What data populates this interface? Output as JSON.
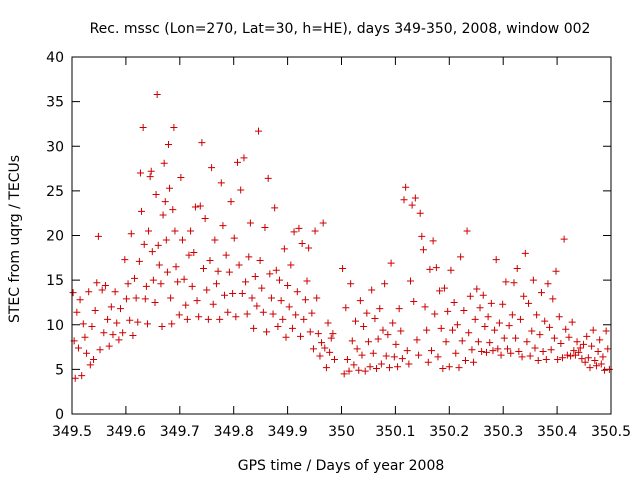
{
  "chart_data": {
    "type": "scatter",
    "title": "Rec. mssc (Lon=270, Lat=30, h=HE), days 349-350, 2008, window 002",
    "xlabel": "GPS time / Days of year 2008",
    "ylabel": "STEC from uqrg / TECUs",
    "xlim": [
      349.5,
      350.5
    ],
    "ylim": [
      0,
      40
    ],
    "xticks": [
      349.5,
      349.6,
      349.7,
      349.8,
      349.9,
      350,
      350.1,
      350.2,
      350.3,
      350.4,
      350.5
    ],
    "xtick_labels": [
      "349.5",
      "349.6",
      "349.7",
      "349.8",
      "349.9",
      "350",
      "350.1",
      "350.2",
      "350.3",
      "350.4",
      "350.5"
    ],
    "yticks": [
      0,
      5,
      10,
      15,
      20,
      25,
      30,
      35,
      40
    ],
    "ytick_labels": [
      "0",
      "5",
      "10",
      "15",
      "20",
      "25",
      "30",
      "35",
      "40"
    ],
    "grid": false,
    "marker": "+",
    "point_color": "#cc0000",
    "points": [
      [
        349.502,
        13.6
      ],
      [
        349.504,
        8.2
      ],
      [
        349.506,
        4.0
      ],
      [
        349.509,
        11.4
      ],
      [
        349.512,
        7.4
      ],
      [
        349.515,
        12.8
      ],
      [
        349.518,
        4.3
      ],
      [
        349.521,
        10.1
      ],
      [
        349.524,
        8.6
      ],
      [
        349.527,
        6.8
      ],
      [
        349.531,
        13.7
      ],
      [
        349.534,
        5.5
      ],
      [
        349.537,
        9.8
      ],
      [
        349.54,
        6.1
      ],
      [
        349.543,
        11.6
      ],
      [
        349.546,
        14.7
      ],
      [
        349.549,
        19.9
      ],
      [
        349.552,
        7.2
      ],
      [
        349.556,
        13.9
      ],
      [
        349.559,
        9.1
      ],
      [
        349.562,
        14.4
      ],
      [
        349.566,
        10.6
      ],
      [
        349.569,
        7.6
      ],
      [
        349.573,
        12.0
      ],
      [
        349.576,
        8.9
      ],
      [
        349.58,
        13.7
      ],
      [
        349.583,
        10.2
      ],
      [
        349.587,
        8.3
      ],
      [
        349.59,
        11.8
      ],
      [
        349.594,
        9.1
      ],
      [
        349.598,
        17.3
      ],
      [
        349.601,
        12.9
      ],
      [
        349.604,
        14.6
      ],
      [
        349.607,
        10.5
      ],
      [
        349.61,
        20.2
      ],
      [
        349.613,
        8.8
      ],
      [
        349.616,
        15.2
      ],
      [
        349.619,
        13.0
      ],
      [
        349.622,
        10.3
      ],
      [
        349.625,
        17.1
      ],
      [
        349.627,
        27.0
      ],
      [
        349.629,
        22.7
      ],
      [
        349.632,
        32.1
      ],
      [
        349.634,
        19.0
      ],
      [
        349.636,
        12.9
      ],
      [
        349.638,
        14.3
      ],
      [
        349.64,
        10.1
      ],
      [
        349.642,
        20.5
      ],
      [
        349.645,
        26.6
      ],
      [
        349.647,
        27.2
      ],
      [
        349.649,
        18.2
      ],
      [
        349.651,
        15.0
      ],
      [
        349.654,
        12.5
      ],
      [
        349.656,
        24.6
      ],
      [
        349.658,
        35.8
      ],
      [
        349.66,
        18.9
      ],
      [
        349.662,
        16.7
      ],
      [
        349.665,
        14.6
      ],
      [
        349.667,
        9.8
      ],
      [
        349.669,
        22.3
      ],
      [
        349.671,
        28.1
      ],
      [
        349.673,
        23.8
      ],
      [
        349.675,
        19.5
      ],
      [
        349.677,
        15.9
      ],
      [
        349.679,
        30.2
      ],
      [
        349.681,
        25.3
      ],
      [
        349.683,
        13.0
      ],
      [
        349.685,
        10.1
      ],
      [
        349.687,
        22.9
      ],
      [
        349.689,
        32.1
      ],
      [
        349.691,
        20.5
      ],
      [
        349.693,
        16.5
      ],
      [
        349.696,
        14.8
      ],
      [
        349.699,
        11.1
      ],
      [
        349.702,
        26.5
      ],
      [
        349.705,
        19.5
      ],
      [
        349.708,
        15.1
      ],
      [
        349.711,
        12.2
      ],
      [
        349.714,
        10.6
      ],
      [
        349.717,
        17.8
      ],
      [
        349.72,
        20.5
      ],
      [
        349.723,
        14.3
      ],
      [
        349.726,
        18.1
      ],
      [
        349.729,
        23.2
      ],
      [
        349.732,
        12.7
      ],
      [
        349.735,
        10.9
      ],
      [
        349.738,
        23.3
      ],
      [
        349.741,
        30.4
      ],
      [
        349.744,
        16.3
      ],
      [
        349.747,
        21.9
      ],
      [
        349.75,
        13.9
      ],
      [
        349.753,
        10.6
      ],
      [
        349.756,
        17.2
      ],
      [
        349.759,
        27.6
      ],
      [
        349.762,
        12.3
      ],
      [
        349.765,
        19.5
      ],
      [
        349.768,
        14.6
      ],
      [
        349.771,
        16.0
      ],
      [
        349.774,
        10.6
      ],
      [
        349.777,
        25.9
      ],
      [
        349.78,
        21.1
      ],
      [
        349.783,
        13.3
      ],
      [
        349.786,
        17.8
      ],
      [
        349.789,
        11.4
      ],
      [
        349.792,
        15.9
      ],
      [
        349.795,
        23.8
      ],
      [
        349.798,
        13.5
      ],
      [
        349.801,
        19.7
      ],
      [
        349.804,
        10.9
      ],
      [
        349.807,
        28.2
      ],
      [
        349.81,
        16.7
      ],
      [
        349.813,
        25.1
      ],
      [
        349.816,
        13.5
      ],
      [
        349.819,
        28.7
      ],
      [
        349.822,
        14.8
      ],
      [
        349.825,
        11.2
      ],
      [
        349.828,
        17.6
      ],
      [
        349.831,
        21.4
      ],
      [
        349.834,
        13.0
      ],
      [
        349.837,
        9.6
      ],
      [
        349.84,
        15.4
      ],
      [
        349.843,
        12.1
      ],
      [
        349.846,
        31.7
      ],
      [
        349.849,
        17.2
      ],
      [
        349.852,
        14.1
      ],
      [
        349.855,
        11.4
      ],
      [
        349.858,
        20.9
      ],
      [
        349.861,
        9.2
      ],
      [
        349.864,
        26.4
      ],
      [
        349.867,
        15.7
      ],
      [
        349.87,
        13.0
      ],
      [
        349.873,
        11.2
      ],
      [
        349.876,
        23.1
      ],
      [
        349.879,
        16.1
      ],
      [
        349.882,
        9.8
      ],
      [
        349.885,
        15.0
      ],
      [
        349.888,
        12.7
      ],
      [
        349.891,
        10.6
      ],
      [
        349.894,
        18.5
      ],
      [
        349.897,
        8.6
      ],
      [
        349.9,
        14.4
      ],
      [
        349.903,
        12.0
      ],
      [
        349.906,
        16.7
      ],
      [
        349.909,
        9.6
      ],
      [
        349.912,
        20.4
      ],
      [
        349.915,
        11.1
      ],
      [
        349.918,
        13.7
      ],
      [
        349.921,
        20.8
      ],
      [
        349.924,
        8.7
      ],
      [
        349.927,
        19.1
      ],
      [
        349.93,
        10.6
      ],
      [
        349.933,
        12.8
      ],
      [
        349.936,
        14.9
      ],
      [
        349.939,
        18.6
      ],
      [
        349.942,
        9.2
      ],
      [
        349.945,
        11.3
      ],
      [
        349.948,
        7.3
      ],
      [
        349.951,
        20.5
      ],
      [
        349.954,
        13.0
      ],
      [
        349.957,
        9.0
      ],
      [
        349.96,
        6.5
      ],
      [
        349.963,
        8.0
      ],
      [
        349.966,
        21.4
      ],
      [
        349.969,
        7.4
      ],
      [
        349.972,
        5.2
      ],
      [
        349.975,
        10.2
      ],
      [
        349.978,
        6.9
      ],
      [
        349.981,
        8.5
      ],
      [
        349.984,
        9.0
      ],
      [
        349.987,
        6.1
      ],
      [
        350.002,
        16.3
      ],
      [
        350.005,
        4.5
      ],
      [
        350.008,
        11.9
      ],
      [
        350.011,
        6.1
      ],
      [
        350.014,
        4.8
      ],
      [
        350.017,
        14.6
      ],
      [
        350.02,
        8.2
      ],
      [
        350.023,
        5.5
      ],
      [
        350.026,
        10.4
      ],
      [
        350.029,
        7.3
      ],
      [
        350.032,
        4.9
      ],
      [
        350.035,
        12.7
      ],
      [
        350.038,
        6.6
      ],
      [
        350.041,
        9.8
      ],
      [
        350.044,
        4.8
      ],
      [
        350.047,
        11.3
      ],
      [
        350.05,
        8.1
      ],
      [
        350.053,
        5.3
      ],
      [
        350.056,
        13.9
      ],
      [
        350.059,
        6.8
      ],
      [
        350.062,
        10.7
      ],
      [
        350.065,
        5.1
      ],
      [
        350.068,
        8.4
      ],
      [
        350.071,
        11.8
      ],
      [
        350.074,
        5.6
      ],
      [
        350.077,
        9.4
      ],
      [
        350.08,
        14.6
      ],
      [
        350.083,
        6.5
      ],
      [
        350.086,
        8.9
      ],
      [
        350.089,
        5.2
      ],
      [
        350.092,
        16.9
      ],
      [
        350.095,
        10.2
      ],
      [
        350.098,
        6.4
      ],
      [
        350.101,
        7.8
      ],
      [
        350.104,
        5.3
      ],
      [
        350.107,
        11.8
      ],
      [
        350.11,
        9.3
      ],
      [
        350.113,
        6.2
      ],
      [
        350.116,
        24.0
      ],
      [
        350.119,
        25.4
      ],
      [
        350.122,
        7.1
      ],
      [
        350.125,
        5.6
      ],
      [
        350.128,
        14.9
      ],
      [
        350.131,
        23.4
      ],
      [
        350.134,
        12.6
      ],
      [
        350.137,
        24.2
      ],
      [
        350.14,
        8.3
      ],
      [
        350.143,
        6.6
      ],
      [
        350.146,
        22.5
      ],
      [
        350.149,
        19.9
      ],
      [
        350.152,
        18.4
      ],
      [
        350.155,
        12.0
      ],
      [
        350.158,
        9.4
      ],
      [
        350.161,
        5.8
      ],
      [
        350.164,
        16.2
      ],
      [
        350.167,
        7.1
      ],
      [
        350.17,
        19.4
      ],
      [
        350.173,
        11.2
      ],
      [
        350.176,
        16.4
      ],
      [
        350.179,
        6.4
      ],
      [
        350.182,
        13.8
      ],
      [
        350.185,
        9.6
      ],
      [
        350.188,
        5.1
      ],
      [
        350.191,
        14.1
      ],
      [
        350.194,
        8.1
      ],
      [
        350.197,
        11.5
      ],
      [
        350.2,
        5.3
      ],
      [
        350.203,
        16.1
      ],
      [
        350.206,
        9.4
      ],
      [
        350.209,
        12.5
      ],
      [
        350.212,
        6.8
      ],
      [
        350.215,
        10.0
      ],
      [
        350.218,
        5.2
      ],
      [
        350.221,
        17.6
      ],
      [
        350.224,
        8.2
      ],
      [
        350.227,
        11.6
      ],
      [
        350.23,
        6.0
      ],
      [
        350.233,
        20.5
      ],
      [
        350.236,
        9.1
      ],
      [
        350.239,
        13.2
      ],
      [
        350.242,
        7.2
      ],
      [
        350.245,
        5.8
      ],
      [
        350.248,
        10.6
      ],
      [
        350.251,
        14.0
      ],
      [
        350.254,
        8.1
      ],
      [
        350.257,
        11.9
      ],
      [
        350.26,
        7.0
      ],
      [
        350.263,
        13.3
      ],
      [
        350.266,
        9.8
      ],
      [
        350.269,
        6.9
      ],
      [
        350.272,
        10.9
      ],
      [
        350.275,
        8.0
      ],
      [
        350.278,
        12.4
      ],
      [
        350.281,
        7.1
      ],
      [
        350.284,
        9.4
      ],
      [
        350.287,
        17.3
      ],
      [
        350.29,
        7.3
      ],
      [
        350.293,
        10.2
      ],
      [
        350.296,
        6.6
      ],
      [
        350.299,
        12.3
      ],
      [
        350.302,
        8.5
      ],
      [
        350.305,
        14.8
      ],
      [
        350.308,
        7.3
      ],
      [
        350.311,
        9.9
      ],
      [
        350.314,
        6.8
      ],
      [
        350.317,
        11.1
      ],
      [
        350.32,
        14.7
      ],
      [
        350.323,
        8.5
      ],
      [
        350.326,
        16.3
      ],
      [
        350.329,
        7.0
      ],
      [
        350.332,
        10.6
      ],
      [
        350.335,
        6.4
      ],
      [
        350.338,
        13.2
      ],
      [
        350.341,
        18.0
      ],
      [
        350.344,
        8.1
      ],
      [
        350.347,
        12.4
      ],
      [
        350.35,
        6.5
      ],
      [
        350.353,
        9.3
      ],
      [
        350.356,
        15.0
      ],
      [
        350.359,
        7.4
      ],
      [
        350.362,
        11.1
      ],
      [
        350.365,
        6.0
      ],
      [
        350.368,
        8.9
      ],
      [
        350.371,
        13.6
      ],
      [
        350.374,
        7.0
      ],
      [
        350.377,
        10.4
      ],
      [
        350.38,
        6.1
      ],
      [
        350.383,
        14.6
      ],
      [
        350.386,
        9.7
      ],
      [
        350.389,
        7.2
      ],
      [
        350.392,
        12.9
      ],
      [
        350.395,
        8.5
      ],
      [
        350.398,
        16.0
      ],
      [
        350.401,
        6.1
      ],
      [
        350.404,
        10.9
      ],
      [
        350.407,
        7.9
      ],
      [
        350.41,
        6.3
      ],
      [
        350.413,
        19.6
      ],
      [
        350.416,
        9.5
      ],
      [
        350.419,
        6.6
      ],
      [
        350.422,
        8.6
      ],
      [
        350.425,
        6.5
      ],
      [
        350.428,
        10.3
      ],
      [
        350.431,
        7.1
      ],
      [
        350.434,
        6.6
      ],
      [
        350.437,
        8.1
      ],
      [
        350.44,
        6.9
      ],
      [
        350.443,
        7.4
      ],
      [
        350.446,
        6.2
      ],
      [
        350.449,
        7.8
      ],
      [
        350.452,
        5.8
      ],
      [
        350.455,
        8.7
      ],
      [
        350.458,
        6.3
      ],
      [
        350.461,
        5.2
      ],
      [
        350.464,
        7.6
      ],
      [
        350.467,
        9.4
      ],
      [
        350.47,
        6.0
      ],
      [
        350.473,
        5.4
      ],
      [
        350.476,
        7.0
      ],
      [
        350.479,
        8.3
      ],
      [
        350.482,
        5.6
      ],
      [
        350.485,
        6.4
      ],
      [
        350.488,
        4.9
      ],
      [
        350.491,
        9.3
      ],
      [
        350.494,
        7.3
      ],
      [
        350.497,
        5.0
      ]
    ]
  }
}
